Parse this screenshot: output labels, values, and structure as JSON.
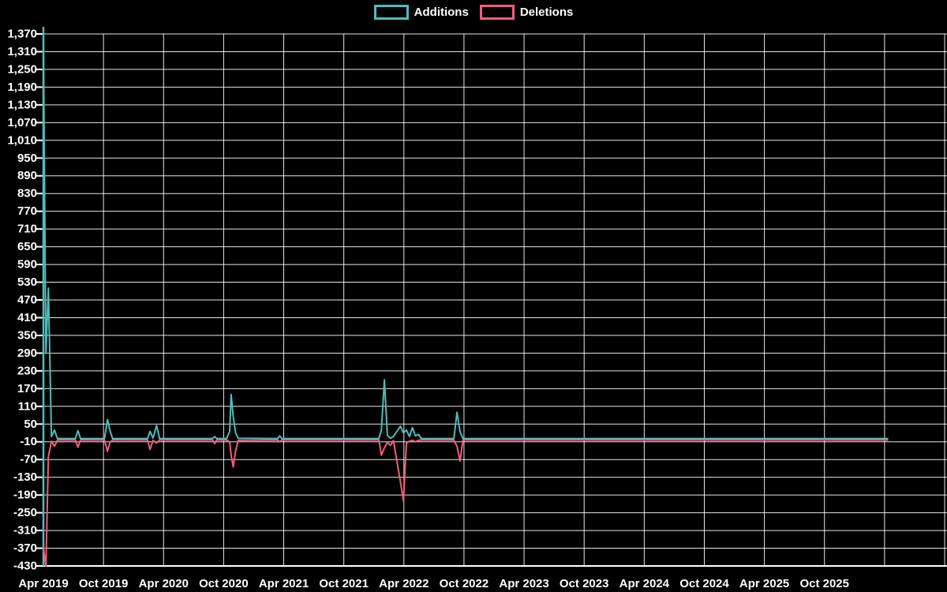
{
  "colors": {
    "background": "#000000",
    "grid": "#ffffff",
    "text": "#ffffff",
    "x_axis": "#ffffff",
    "y_axis": "#4dbdba",
    "additions": "#4dbdba",
    "deletions": "#f25c7d"
  },
  "legend": {
    "items": [
      {
        "label": "Additions",
        "color": "#4dbdba"
      },
      {
        "label": "Deletions",
        "color": "#f25c7d"
      }
    ]
  },
  "chart_data": {
    "type": "line",
    "title": "",
    "legend_position": "top-center",
    "grid": true,
    "x_axis": {
      "tick_labels": [
        "Apr 2019",
        "Oct 2019",
        "Apr 2020",
        "Oct 2020",
        "Apr 2021",
        "Oct 2021",
        "Apr 2022",
        "Oct 2022",
        "Apr 2023",
        "Oct 2023",
        "Apr 2024",
        "Oct 2024",
        "Apr 2025",
        "Oct 2025"
      ],
      "months_per_tick": 6,
      "trailing_unlabeled_gridlines": 1
    },
    "y_axis": {
      "min": -430,
      "max": 1370,
      "step": 60,
      "tick_labels": [
        "1,370",
        "1,310",
        "1,250",
        "1,190",
        "1,130",
        "1,070",
        "1,010",
        "950",
        "890",
        "830",
        "770",
        "710",
        "650",
        "590",
        "530",
        "470",
        "410",
        "350",
        "290",
        "230",
        "170",
        "110",
        "50",
        "-10",
        "-70",
        "-130",
        "-190",
        "-250",
        "-310",
        "-370",
        "-430"
      ]
    },
    "series": [
      {
        "name": "Additions",
        "color": "#4dbdba",
        "points": [
          [
            0.0,
            1340
          ],
          [
            0.25,
            290
          ],
          [
            0.5,
            510
          ],
          [
            0.8,
            8
          ],
          [
            1.1,
            30
          ],
          [
            1.4,
            1
          ],
          [
            3.2,
            1
          ],
          [
            3.45,
            28
          ],
          [
            3.7,
            1
          ],
          [
            6.1,
            1
          ],
          [
            6.4,
            65
          ],
          [
            6.65,
            28
          ],
          [
            6.9,
            1
          ],
          [
            10.4,
            1
          ],
          [
            10.65,
            25
          ],
          [
            10.95,
            3
          ],
          [
            11.3,
            45
          ],
          [
            11.6,
            1
          ],
          [
            16.9,
            1
          ],
          [
            17.1,
            8
          ],
          [
            17.3,
            1
          ],
          [
            18.3,
            1
          ],
          [
            18.6,
            25
          ],
          [
            18.75,
            150
          ],
          [
            18.95,
            75
          ],
          [
            19.2,
            20
          ],
          [
            19.45,
            2
          ],
          [
            23.4,
            1
          ],
          [
            23.6,
            10
          ],
          [
            23.8,
            1
          ],
          [
            33.5,
            1
          ],
          [
            33.75,
            30
          ],
          [
            34.05,
            200
          ],
          [
            34.35,
            12
          ],
          [
            34.65,
            2
          ],
          [
            34.95,
            8
          ],
          [
            35.65,
            43
          ],
          [
            35.95,
            20
          ],
          [
            36.25,
            30
          ],
          [
            36.55,
            8
          ],
          [
            36.85,
            38
          ],
          [
            37.15,
            10
          ],
          [
            37.45,
            15
          ],
          [
            37.75,
            1
          ],
          [
            41.0,
            1
          ],
          [
            41.3,
            90
          ],
          [
            41.6,
            25
          ],
          [
            41.9,
            1
          ],
          [
            84.3,
            1
          ]
        ]
      },
      {
        "name": "Deletions",
        "color": "#f25c7d",
        "points": [
          [
            0.0,
            -370
          ],
          [
            0.25,
            -430
          ],
          [
            0.5,
            -60
          ],
          [
            0.8,
            -8
          ],
          [
            1.1,
            -25
          ],
          [
            1.4,
            -4
          ],
          [
            3.2,
            -4
          ],
          [
            3.45,
            -28
          ],
          [
            3.7,
            -4
          ],
          [
            6.1,
            -4
          ],
          [
            6.4,
            -42
          ],
          [
            6.65,
            -12
          ],
          [
            6.9,
            -4
          ],
          [
            10.4,
            -4
          ],
          [
            10.65,
            -36
          ],
          [
            10.95,
            -5
          ],
          [
            11.3,
            -14
          ],
          [
            11.6,
            -4
          ],
          [
            16.9,
            -4
          ],
          [
            17.1,
            -16
          ],
          [
            17.3,
            -4
          ],
          [
            18.3,
            -4
          ],
          [
            18.6,
            -10
          ],
          [
            18.75,
            -55
          ],
          [
            18.95,
            -95
          ],
          [
            19.2,
            -40
          ],
          [
            19.45,
            -5
          ],
          [
            23.4,
            -4
          ],
          [
            23.6,
            -10
          ],
          [
            23.8,
            -4
          ],
          [
            33.5,
            -4
          ],
          [
            33.75,
            -55
          ],
          [
            34.05,
            -30
          ],
          [
            34.35,
            -12
          ],
          [
            34.65,
            -22
          ],
          [
            34.95,
            -6
          ],
          [
            35.65,
            -145
          ],
          [
            35.95,
            -210
          ],
          [
            36.25,
            -15
          ],
          [
            36.55,
            -8
          ],
          [
            36.85,
            -5
          ],
          [
            37.15,
            -10
          ],
          [
            37.45,
            -5
          ],
          [
            37.75,
            -4
          ],
          [
            41.0,
            -4
          ],
          [
            41.3,
            -25
          ],
          [
            41.6,
            -75
          ],
          [
            41.9,
            -4
          ],
          [
            84.3,
            -4
          ]
        ]
      }
    ]
  }
}
